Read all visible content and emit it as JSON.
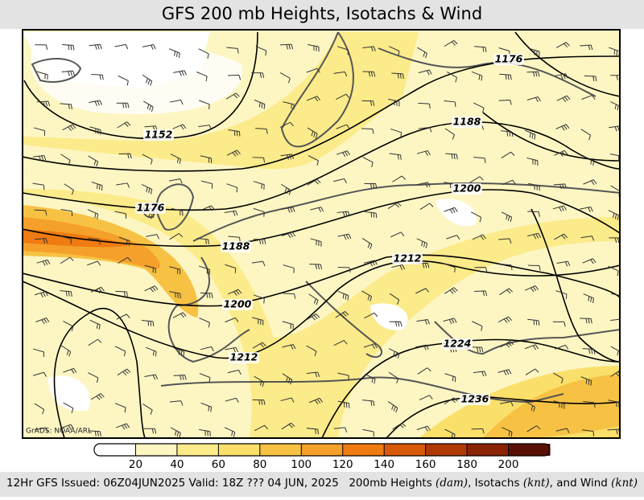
{
  "header": {
    "title": "GFS 200 mb Heights, Isotachs & Wind"
  },
  "map": {
    "credit": "GrADS: NOAA/ARL",
    "contour_labels": [
      1152,
      1176,
      1188,
      1200,
      1212,
      1212,
      1200,
      1188,
      1176,
      1224,
      1236
    ]
  },
  "colorbar": {
    "ticks": [
      20,
      40,
      60,
      80,
      100,
      120,
      140,
      160,
      180,
      200
    ],
    "colors": [
      "#ffffff",
      "#fdf6c3",
      "#fbeb8a",
      "#fae06a",
      "#f7c244",
      "#f5a02a",
      "#ef7b12",
      "#d85a08",
      "#b03a06",
      "#8a2205",
      "#5a1004"
    ]
  },
  "footer": {
    "left": "12Hr GFS Issued: 06Z04JUN2025 Valid: 18Z ??? 04 JUN, 2025",
    "right": [
      {
        "text": "200mb Heights ",
        "italic": false
      },
      {
        "text": "(dam)",
        "italic": true
      },
      {
        "text": ", Isotachs ",
        "italic": false
      },
      {
        "text": "(knt)",
        "italic": true
      },
      {
        "text": ", and Wind ",
        "italic": false
      },
      {
        "text": "(knt)",
        "italic": true
      }
    ]
  }
}
